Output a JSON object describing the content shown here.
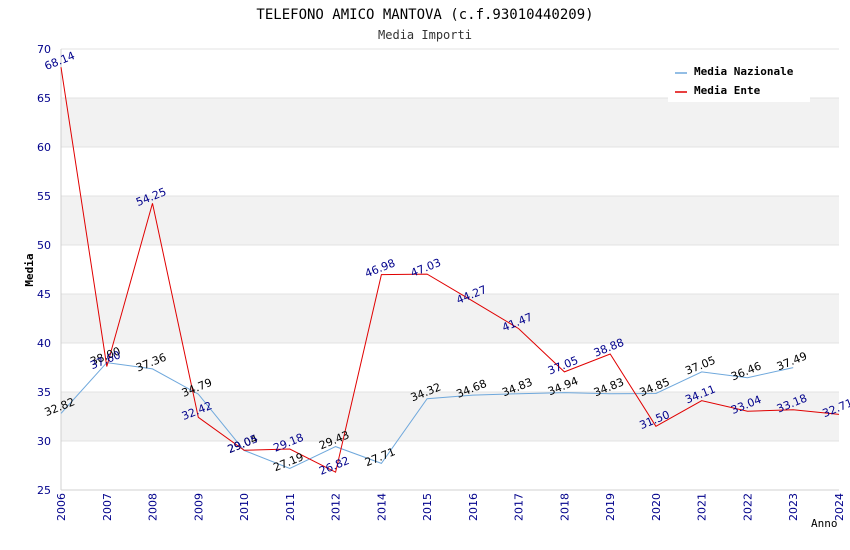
{
  "chart_data": {
    "type": "line",
    "title": "TELEFONO AMICO MANTOVA (c.f.93010440209)",
    "subtitle": "Media Importi",
    "xlabel": "Anno",
    "ylabel": "Media",
    "ylim": [
      25,
      70
    ],
    "yticks": [
      25,
      30,
      35,
      40,
      45,
      50,
      55,
      60,
      65,
      70
    ],
    "categories": [
      "2006",
      "2007",
      "2008",
      "2009",
      "2010",
      "2011",
      "2012",
      "2014",
      "2015",
      "2016",
      "2017",
      "2018",
      "2019",
      "2020",
      "2021",
      "2022",
      "2023",
      "2024"
    ],
    "series": [
      {
        "name": "Media Nazionale",
        "color": "#6fa8dc",
        "values": [
          32.82,
          38.0,
          37.36,
          34.79,
          29.04,
          27.19,
          29.43,
          27.71,
          34.32,
          34.68,
          34.83,
          34.94,
          34.83,
          34.85,
          37.05,
          36.46,
          37.49,
          null
        ],
        "labels": [
          "32.82",
          "38.00",
          "37.36",
          "34.79",
          "29.04",
          "27.19",
          "29.43",
          "27.71",
          "34.32",
          "34.68",
          "34.83",
          "34.94",
          "34.83",
          "34.85",
          "37.05",
          "36.46",
          "37.49",
          ""
        ]
      },
      {
        "name": "Media Ente",
        "color": "#e00000",
        "values": [
          68.14,
          37.6,
          54.25,
          32.42,
          29.05,
          29.18,
          26.82,
          46.98,
          47.03,
          44.27,
          41.47,
          37.05,
          38.88,
          31.5,
          34.11,
          33.04,
          33.18,
          32.71
        ],
        "labels": [
          "68.14",
          "37.60",
          "54.25",
          "32.42",
          "29.05",
          "29.18",
          "26.82",
          "46.98",
          "47.03",
          "44.27",
          "41.47",
          "37.05",
          "38.88",
          "31.50",
          "34.11",
          "33.04",
          "33.18",
          "32.71"
        ]
      }
    ],
    "legend": "top-right",
    "grid": true
  }
}
